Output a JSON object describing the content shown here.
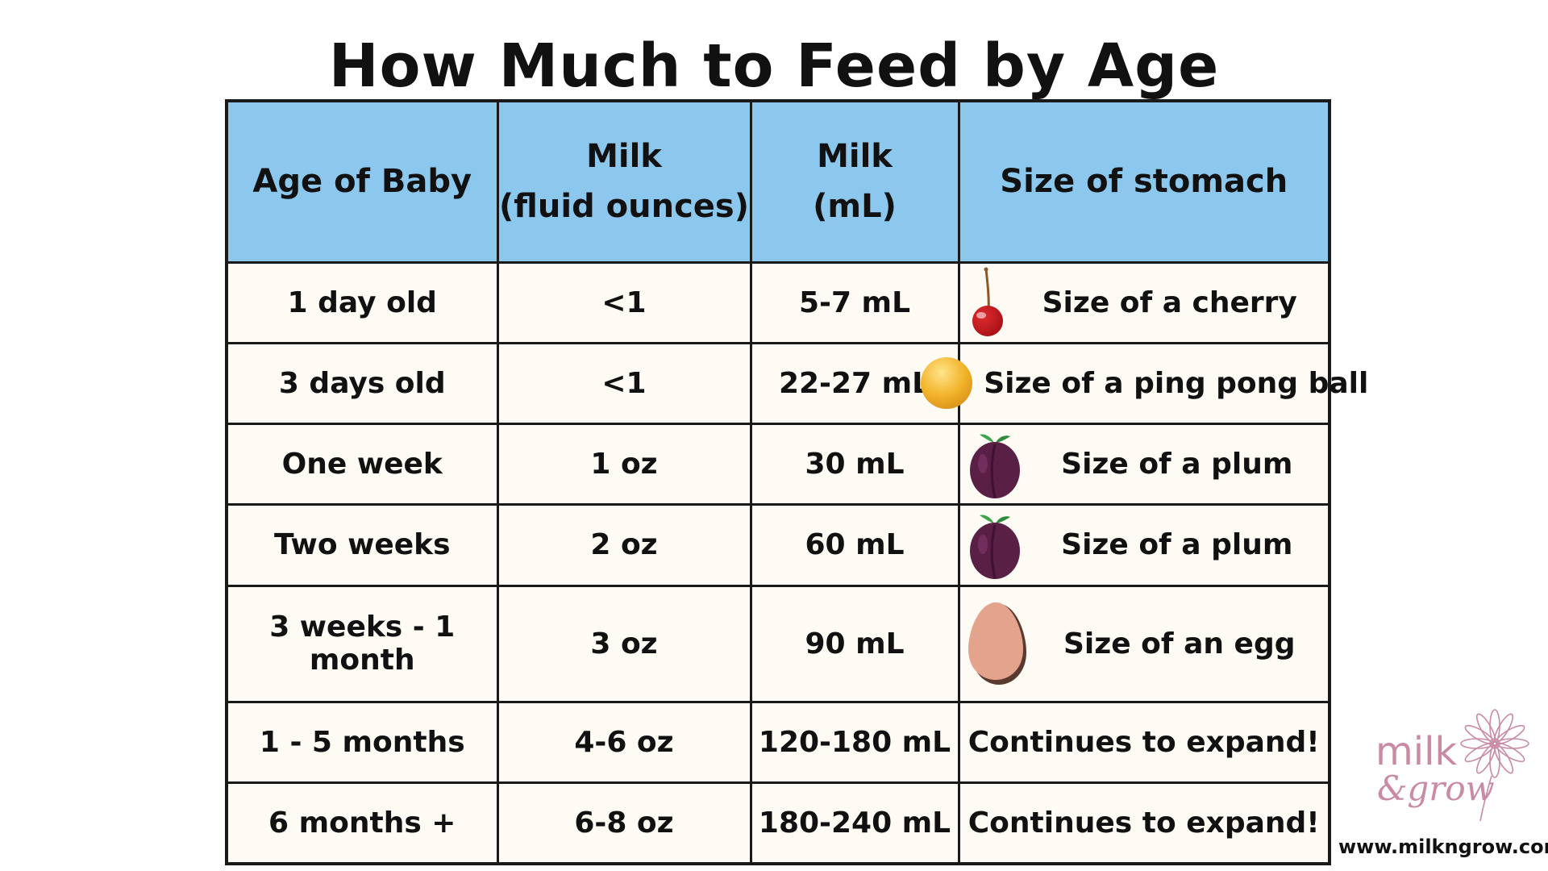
{
  "title": "How Much to Feed by Age",
  "table": {
    "headers": {
      "age": "Age of Baby",
      "oz_line1": "Milk",
      "oz_line2": "(fluid ounces)",
      "ml_line1": "Milk",
      "ml_line2": "(mL)",
      "stomach": "Size of stomach"
    },
    "rows": [
      {
        "age": "1 day old",
        "oz": "<1",
        "ml": "5-7 mL",
        "stomach": "Size of a cherry",
        "icon": "cherry-icon"
      },
      {
        "age": "3 days old",
        "oz": "<1",
        "ml": "22-27 mL",
        "stomach": "Size of a ping pong ball",
        "icon": "ping-pong-ball-icon"
      },
      {
        "age": "One week",
        "oz": "1 oz",
        "ml": "30 mL",
        "stomach": "Size of a plum",
        "icon": "plum-icon"
      },
      {
        "age": "Two weeks",
        "oz": "2 oz",
        "ml": "60 mL",
        "stomach": "Size of a plum",
        "icon": "plum-icon"
      },
      {
        "age": "3 weeks - 1 month",
        "oz": "3 oz",
        "ml": "90 mL",
        "stomach": "Size of an egg",
        "icon": "egg-icon"
      },
      {
        "age": "1 - 5 months",
        "oz": "4-6 oz",
        "ml": "120-180 mL",
        "stomach": "Continues to expand!"
      },
      {
        "age": "6 months +",
        "oz": "6-8 oz",
        "ml": "180-240 mL",
        "stomach": "Continues to expand!"
      }
    ]
  },
  "brand": {
    "logo_word1": "milk",
    "logo_word2": "&grow",
    "url": "www.milkngrow.com"
  },
  "colors": {
    "header_bg": "#8cc7ee",
    "cell_bg": "#fdfbf4",
    "border": "#1a1a1a",
    "logo_pink": "#c98aa4"
  }
}
